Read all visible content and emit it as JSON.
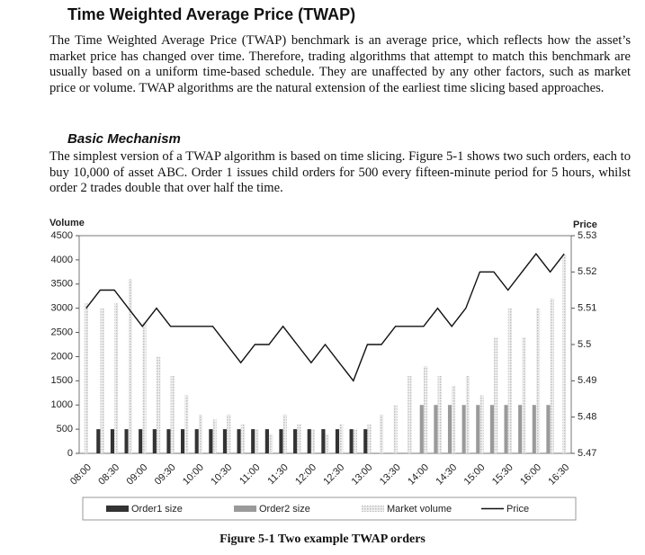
{
  "header": {
    "title": "Time Weighted Average Price (TWAP)"
  },
  "paragraphs": [
    "The Time Weighted Average Price (TWAP) benchmark is an average price, which reflects how the asset’s market price has changed over time. Therefore, trading algorithms that attempt to match this benchmark are usually based on a uniform time-based schedule. They are unaffected by any other factors, such as market price or volume. TWAP algorithms are the natural extension of the earliest time slicing based approaches.",
    "The simplest version of a TWAP algorithm is based on time slicing. Figure 5-1 shows two such orders, each to buy 10,000 of asset ABC. Order 1 issues child orders for 500 every fifteen-minute period for 5 hours, whilst order 2 trades double that over half the time."
  ],
  "subheading": "Basic Mechanism",
  "caption": "Figure 5-1 Two example TWAP orders",
  "chart_data": {
    "type": "bar",
    "y_label": "Volume",
    "y2_label": "Price",
    "categories": [
      "08:00",
      null,
      "08:30",
      null,
      "09:00",
      null,
      "09:30",
      null,
      "10:00",
      null,
      "10:30",
      null,
      "11:00",
      null,
      "11:30",
      null,
      "12:00",
      null,
      "12:30",
      null,
      "13:00",
      null,
      "13:30",
      null,
      "14:00",
      null,
      "14:30",
      null,
      "15:00",
      null,
      "15:30",
      null,
      "16:00",
      null,
      "16:30"
    ],
    "series": [
      {
        "name": "Order1 size",
        "color": "#333333",
        "values": [
          null,
          500,
          500,
          500,
          500,
          500,
          500,
          500,
          500,
          500,
          500,
          500,
          500,
          500,
          500,
          500,
          500,
          500,
          500,
          500,
          500,
          null,
          null,
          null,
          null,
          null,
          null,
          null,
          null,
          null,
          null,
          null,
          null,
          null,
          null
        ]
      },
      {
        "name": "Order2 size",
        "color": "#9a9a9a",
        "values": [
          null,
          null,
          null,
          null,
          null,
          null,
          null,
          null,
          null,
          null,
          null,
          null,
          null,
          null,
          null,
          null,
          null,
          null,
          null,
          null,
          null,
          null,
          null,
          null,
          1000,
          1000,
          1000,
          1000,
          1000,
          1000,
          1000,
          1000,
          1000,
          1000,
          null
        ]
      },
      {
        "name": "Market volume",
        "color": "#d6d6d6",
        "values": [
          3100,
          3000,
          3100,
          3600,
          2700,
          2000,
          1600,
          1200,
          800,
          700,
          800,
          600,
          500,
          400,
          800,
          600,
          500,
          400,
          600,
          500,
          600,
          800,
          1000,
          1600,
          1800,
          1600,
          1400,
          1600,
          1200,
          2400,
          3000,
          2400,
          3000,
          3200,
          4100
        ]
      },
      {
        "name": "Price",
        "color": "#111111",
        "axis": "y2",
        "values": [
          5.51,
          5.515,
          5.515,
          5.51,
          5.505,
          5.51,
          5.505,
          5.505,
          5.505,
          5.505,
          5.5,
          5.495,
          5.5,
          5.5,
          5.505,
          5.5,
          5.495,
          5.5,
          5.495,
          5.49,
          5.5,
          5.5,
          5.505,
          5.505,
          5.505,
          5.51,
          5.505,
          5.51,
          5.52,
          5.52,
          5.515,
          5.52,
          5.525,
          5.52,
          5.525
        ]
      }
    ],
    "ylim": [
      0,
      4500
    ],
    "yticks": [
      0,
      500,
      1000,
      1500,
      2000,
      2500,
      3000,
      3500,
      4000,
      4500
    ],
    "y2lim": [
      5.47,
      5.53
    ],
    "y2ticks": [
      5.47,
      5.48,
      5.49,
      5.5,
      5.51,
      5.52,
      5.53
    ],
    "legend": "bottom"
  }
}
